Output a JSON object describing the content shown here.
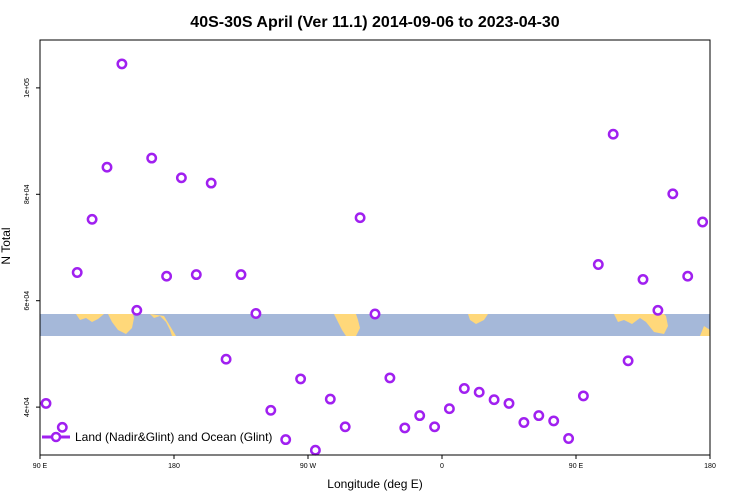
{
  "chart_data": {
    "type": "scatter",
    "title": "40S-30S April (Ver 11.1)   2014-09-06 to 2023-04-30",
    "xlabel": "Longitude (deg E)",
    "ylabel": "N Total",
    "x_ticks": [
      {
        "value": 90,
        "label": "90 E"
      },
      {
        "value": 180,
        "label": "180"
      },
      {
        "value": 270,
        "label": "90 W"
      },
      {
        "value": 360,
        "label": "0"
      },
      {
        "value": 450,
        "label": "90 E"
      },
      {
        "value": 540,
        "label": "180"
      }
    ],
    "y_ticks": [
      {
        "value": 40000,
        "label": "4e+04"
      },
      {
        "value": 60000,
        "label": "6e+04"
      },
      {
        "value": 80000,
        "label": "8e+04"
      },
      {
        "value": 100000,
        "label": "1e+05"
      }
    ],
    "xlim": [
      90,
      540
    ],
    "ylim": [
      31000,
      109000
    ],
    "legend": {
      "position": "bottom-left",
      "label": "Land (Nadir&Glint) and Ocean (Glint)"
    },
    "marker_color": "#a020f0",
    "map_strip": {
      "ocean_color": "#a5b8d9",
      "land_color": "#ffd87a"
    },
    "series": [
      {
        "name": "Land (Nadir&Glint) and Ocean (Glint)",
        "points": [
          [
            94,
            40700
          ],
          [
            105,
            36200
          ],
          [
            115,
            65300
          ],
          [
            125,
            75300
          ],
          [
            135,
            85100
          ],
          [
            145,
            104500
          ],
          [
            155,
            58200
          ],
          [
            165,
            86800
          ],
          [
            175,
            64600
          ],
          [
            185,
            83100
          ],
          [
            195,
            64900
          ],
          [
            205,
            82100
          ],
          [
            215,
            49000
          ],
          [
            225,
            64900
          ],
          [
            235,
            57600
          ],
          [
            245,
            39400
          ],
          [
            255,
            33900
          ],
          [
            265,
            45300
          ],
          [
            275,
            31900
          ],
          [
            285,
            41500
          ],
          [
            295,
            36300
          ],
          [
            305,
            75600
          ],
          [
            315,
            57500
          ],
          [
            325,
            45500
          ],
          [
            335,
            36100
          ],
          [
            345,
            38400
          ],
          [
            355,
            36300
          ],
          [
            365,
            39700
          ],
          [
            375,
            43500
          ],
          [
            385,
            42800
          ],
          [
            395,
            41400
          ],
          [
            405,
            40700
          ],
          [
            415,
            37100
          ],
          [
            425,
            38400
          ],
          [
            435,
            37400
          ],
          [
            445,
            34100
          ],
          [
            455,
            42100
          ],
          [
            465,
            66800
          ],
          [
            475,
            91300
          ],
          [
            485,
            48700
          ],
          [
            495,
            64000
          ],
          [
            505,
            58200
          ],
          [
            515,
            80100
          ],
          [
            525,
            64600
          ],
          [
            535,
            74800
          ]
        ]
      }
    ]
  }
}
